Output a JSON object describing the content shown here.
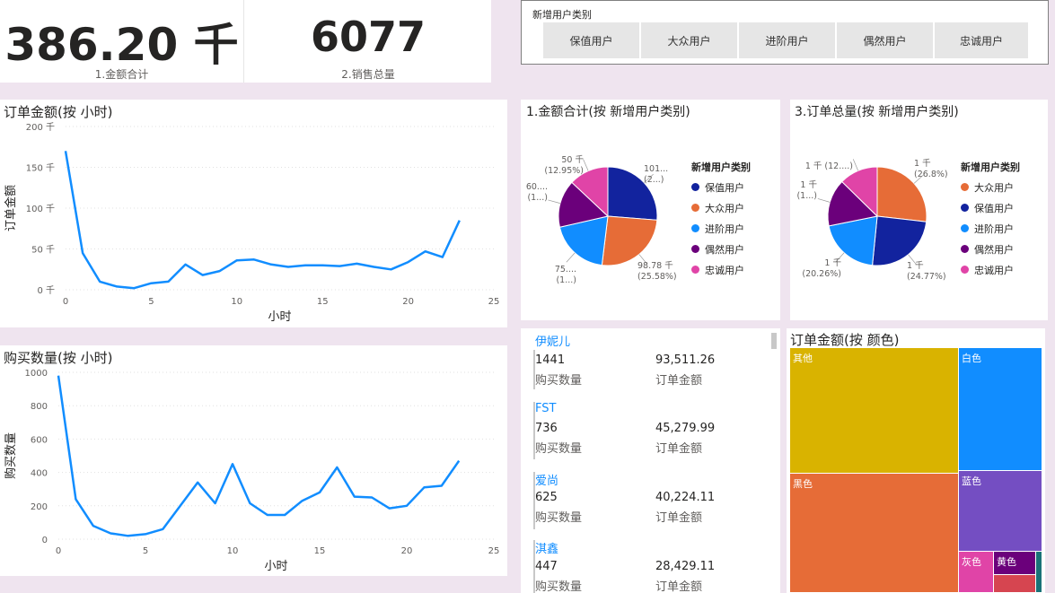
{
  "kpis": [
    {
      "value": "386.20 千",
      "label": "1.金额合计"
    },
    {
      "value": "6077",
      "label": "2.销售总量"
    }
  ],
  "slicer": {
    "title": "新增用户类别",
    "options": [
      "保值用户",
      "大众用户",
      "进阶用户",
      "偶然用户",
      "忠诚用户"
    ]
  },
  "colors": {
    "accent": "#118dff",
    "保值用户": "#12239e",
    "大众用户": "#e66c37",
    "进阶用户": "#118dff",
    "偶然用户": "#6b007b",
    "忠诚用户": "#e044a7"
  },
  "chart_data": [
    {
      "type": "line",
      "title": "订单金额(按 小时)",
      "xlabel": "小时",
      "ylabel": "订单金额",
      "x": [
        0,
        1,
        2,
        3,
        4,
        5,
        6,
        7,
        8,
        9,
        10,
        11,
        12,
        13,
        14,
        15,
        16,
        17,
        18,
        19,
        20,
        21,
        22,
        23
      ],
      "values": [
        170,
        45,
        10,
        4,
        2,
        8,
        10,
        31,
        18,
        23,
        36,
        37,
        31,
        28,
        30,
        30,
        29,
        32,
        28,
        25,
        34,
        47,
        40,
        85
      ],
      "xlim": [
        0,
        25
      ],
      "ylim": [
        0,
        200
      ],
      "xticks": [
        "0",
        "5",
        "10",
        "15",
        "20",
        "25"
      ],
      "yticks": [
        "0 千",
        "50 千",
        "100 千",
        "150 千",
        "200 千"
      ],
      "grid": true,
      "color": "#118dff"
    },
    {
      "type": "line",
      "title": "购买数量(按 小时)",
      "xlabel": "小时",
      "ylabel": "购买数量",
      "x": [
        0,
        1,
        2,
        3,
        4,
        5,
        6,
        7,
        8,
        9,
        10,
        11,
        12,
        13,
        14,
        15,
        16,
        17,
        18,
        19,
        20,
        21,
        22,
        23
      ],
      "values": [
        980,
        240,
        80,
        35,
        20,
        30,
        60,
        200,
        340,
        215,
        450,
        215,
        145,
        145,
        230,
        280,
        430,
        255,
        250,
        185,
        200,
        310,
        320,
        470
      ],
      "xlim": [
        0,
        25
      ],
      "ylim": [
        0,
        1000
      ],
      "xticks": [
        "0",
        "5",
        "10",
        "15",
        "20",
        "25"
      ],
      "yticks": [
        "0",
        "200",
        "400",
        "600",
        "800",
        "1000"
      ],
      "grid": true,
      "color": "#118dff"
    },
    {
      "type": "pie",
      "title": "1.金额合计(按 新增用户类别)",
      "legend_title": "新增用户类别",
      "legend_position": "right",
      "slices": [
        {
          "name": "保值用户",
          "value": 101,
          "label_top": "101...",
          "label_bottom": "(2...)"
        },
        {
          "name": "大众用户",
          "value": 98.78,
          "label_top": "98.78 千",
          "label_bottom": "(25.58%)"
        },
        {
          "name": "进阶用户",
          "value": 75,
          "label_top": "75....",
          "label_bottom": "(1...)"
        },
        {
          "name": "偶然用户",
          "value": 60,
          "label_top": "60....",
          "label_bottom": "(1...)"
        },
        {
          "name": "忠诚用户",
          "value": 50,
          "label_top": "50 千",
          "label_bottom": "(12.95%)"
        }
      ]
    },
    {
      "type": "pie",
      "title": "3.订单总量(按 新增用户类别)",
      "legend_title": "新增用户类别",
      "legend_position": "right",
      "slices": [
        {
          "name": "大众用户",
          "value": 26.8,
          "label_top": "1 千",
          "label_bottom": "(26.8%)"
        },
        {
          "name": "保值用户",
          "value": 24.77,
          "label_top": "1 千",
          "label_bottom": "(24.77%)"
        },
        {
          "name": "进阶用户",
          "value": 20.26,
          "label_top": "1 千",
          "label_bottom": "(20.26%)"
        },
        {
          "name": "偶然用户",
          "value": 15.5,
          "label_top": "1 千",
          "label_bottom": "(1...)"
        },
        {
          "name": "忠诚用户",
          "value": 12.67,
          "label_top": "1 千 (12....)",
          "label_bottom": ""
        }
      ]
    },
    {
      "type": "table",
      "title": "",
      "rows": [
        {
          "name": "伊妮儿",
          "qty": "1441",
          "amount": "93,511.26",
          "qty_label": "购买数量",
          "amount_label": "订单金额"
        },
        {
          "name": "FST",
          "qty": "736",
          "amount": "45,279.99",
          "qty_label": "购买数量",
          "amount_label": "订单金额"
        },
        {
          "name": "爱尚",
          "qty": "625",
          "amount": "40,224.11",
          "qty_label": "购买数量",
          "amount_label": "订单金额"
        },
        {
          "name": "淇鑫",
          "qty": "447",
          "amount": "28,429.11",
          "qty_label": "购买数量",
          "amount_label": "订单金额"
        }
      ]
    },
    {
      "type": "treemap",
      "title": "订单金额(按 颜色)",
      "items": [
        {
          "name": "其他",
          "color": "#d9b300"
        },
        {
          "name": "白色",
          "color": "#118dff"
        },
        {
          "name": "黑色",
          "color": "#e66c37"
        },
        {
          "name": "蓝色",
          "color": "#744ec2"
        },
        {
          "name": "灰色",
          "color": "#e044a7"
        },
        {
          "name": "黄色",
          "color": "#6b007b"
        }
      ]
    }
  ]
}
